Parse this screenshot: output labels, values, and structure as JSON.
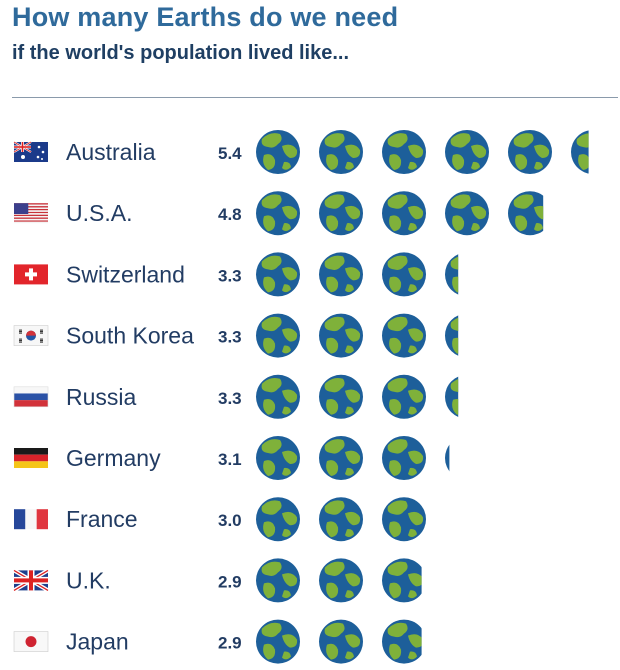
{
  "title": "How many Earths do we need",
  "subtitle": "if the world's population lived like...",
  "colors": {
    "title": "#2f6a9b",
    "text": "#223c63",
    "ocean": "#1d5f9a",
    "land": "#7fb13a"
  },
  "chart_data": {
    "type": "bar",
    "mark": "earth-icon",
    "categories": [
      "Australia",
      "U.S.A.",
      "Switzerland",
      "South Korea",
      "Russia",
      "Germany",
      "France",
      "U.K.",
      "Japan"
    ],
    "values": [
      5.4,
      4.8,
      3.3,
      3.3,
      3.3,
      3.1,
      3.0,
      2.9,
      2.9
    ],
    "value_labels": [
      "5.4",
      "4.8",
      "3.3",
      "3.3",
      "3.3",
      "3.1",
      "3.0",
      "2.9",
      "2.9"
    ],
    "flags": [
      "australia-flag-icon",
      "usa-flag-icon",
      "switzerland-flag-icon",
      "south-korea-flag-icon",
      "russia-flag-icon",
      "germany-flag-icon",
      "france-flag-icon",
      "uk-flag-icon",
      "japan-flag-icon"
    ],
    "title": "How many Earths do we need",
    "subtitle": "if the world's population lived like...",
    "xlabel": "",
    "ylabel": "",
    "xlim": [
      0,
      6
    ],
    "grid": false,
    "legend": "none"
  }
}
